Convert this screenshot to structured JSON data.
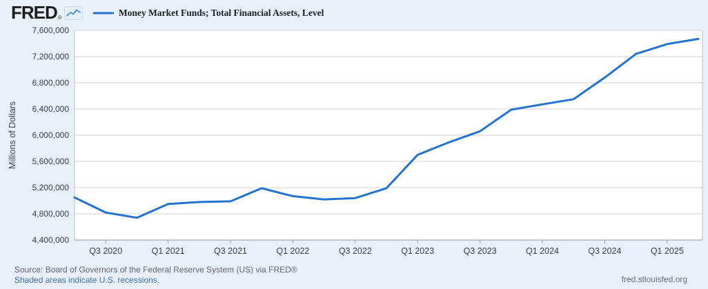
{
  "header": {
    "logo_text": "FRED",
    "logo_reg": "®",
    "legend_label": "Money Market Funds; Total Financial Assets, Level"
  },
  "chart_data": {
    "type": "line",
    "title": "Money Market Funds; Total Financial Assets, Level",
    "xlabel": "",
    "ylabel": "Millions of Dollars",
    "units": "Millions of Dollars",
    "frequency": "Quarterly",
    "grid": true,
    "legend_position": "top-left",
    "line_color": "#2272ce",
    "ylim": [
      4400000,
      7600000
    ],
    "x": [
      "2020 Q2",
      "2020 Q3",
      "2020 Q4",
      "2021 Q1",
      "2021 Q2",
      "2021 Q3",
      "2021 Q4",
      "2022 Q1",
      "2022 Q2",
      "2022 Q3",
      "2022 Q4",
      "2023 Q1",
      "2023 Q2",
      "2023 Q3",
      "2023 Q4",
      "2024 Q1",
      "2024 Q2",
      "2024 Q3",
      "2024 Q4",
      "2025 Q1",
      "2025 Q2"
    ],
    "values": [
      5050000,
      4820000,
      4740000,
      4950000,
      4980000,
      4990000,
      5190000,
      5070000,
      5020000,
      5040000,
      5190000,
      5700000,
      5890000,
      6060000,
      6390000,
      6470000,
      6550000,
      6880000,
      7240000,
      7390000,
      7470000
    ],
    "y_ticks": [
      4400000,
      4800000,
      5200000,
      5600000,
      6000000,
      6400000,
      6800000,
      7200000,
      7600000
    ],
    "y_tick_labels": [
      "4,400,000",
      "4,800,000",
      "5,200,000",
      "5,600,000",
      "6,000,000",
      "6,400,000",
      "6,800,000",
      "7,200,000",
      "7,600,000"
    ],
    "x_tick_indices": [
      1,
      3,
      5,
      7,
      9,
      11,
      13,
      15,
      17,
      19
    ],
    "x_tick_labels": [
      "Q3 2020",
      "Q1 2021",
      "Q3 2021",
      "Q1 2022",
      "Q3 2022",
      "Q1 2023",
      "Q3 2023",
      "Q1 2024",
      "Q3 2024",
      "Q1 2025"
    ]
  },
  "footer": {
    "source_line": "Source: Board of Governors of the Federal Reserve System (US) via FRED®",
    "recession_note": "Shaded areas indicate U.S. recessions.",
    "site": "fred.stlouisfed.org"
  }
}
